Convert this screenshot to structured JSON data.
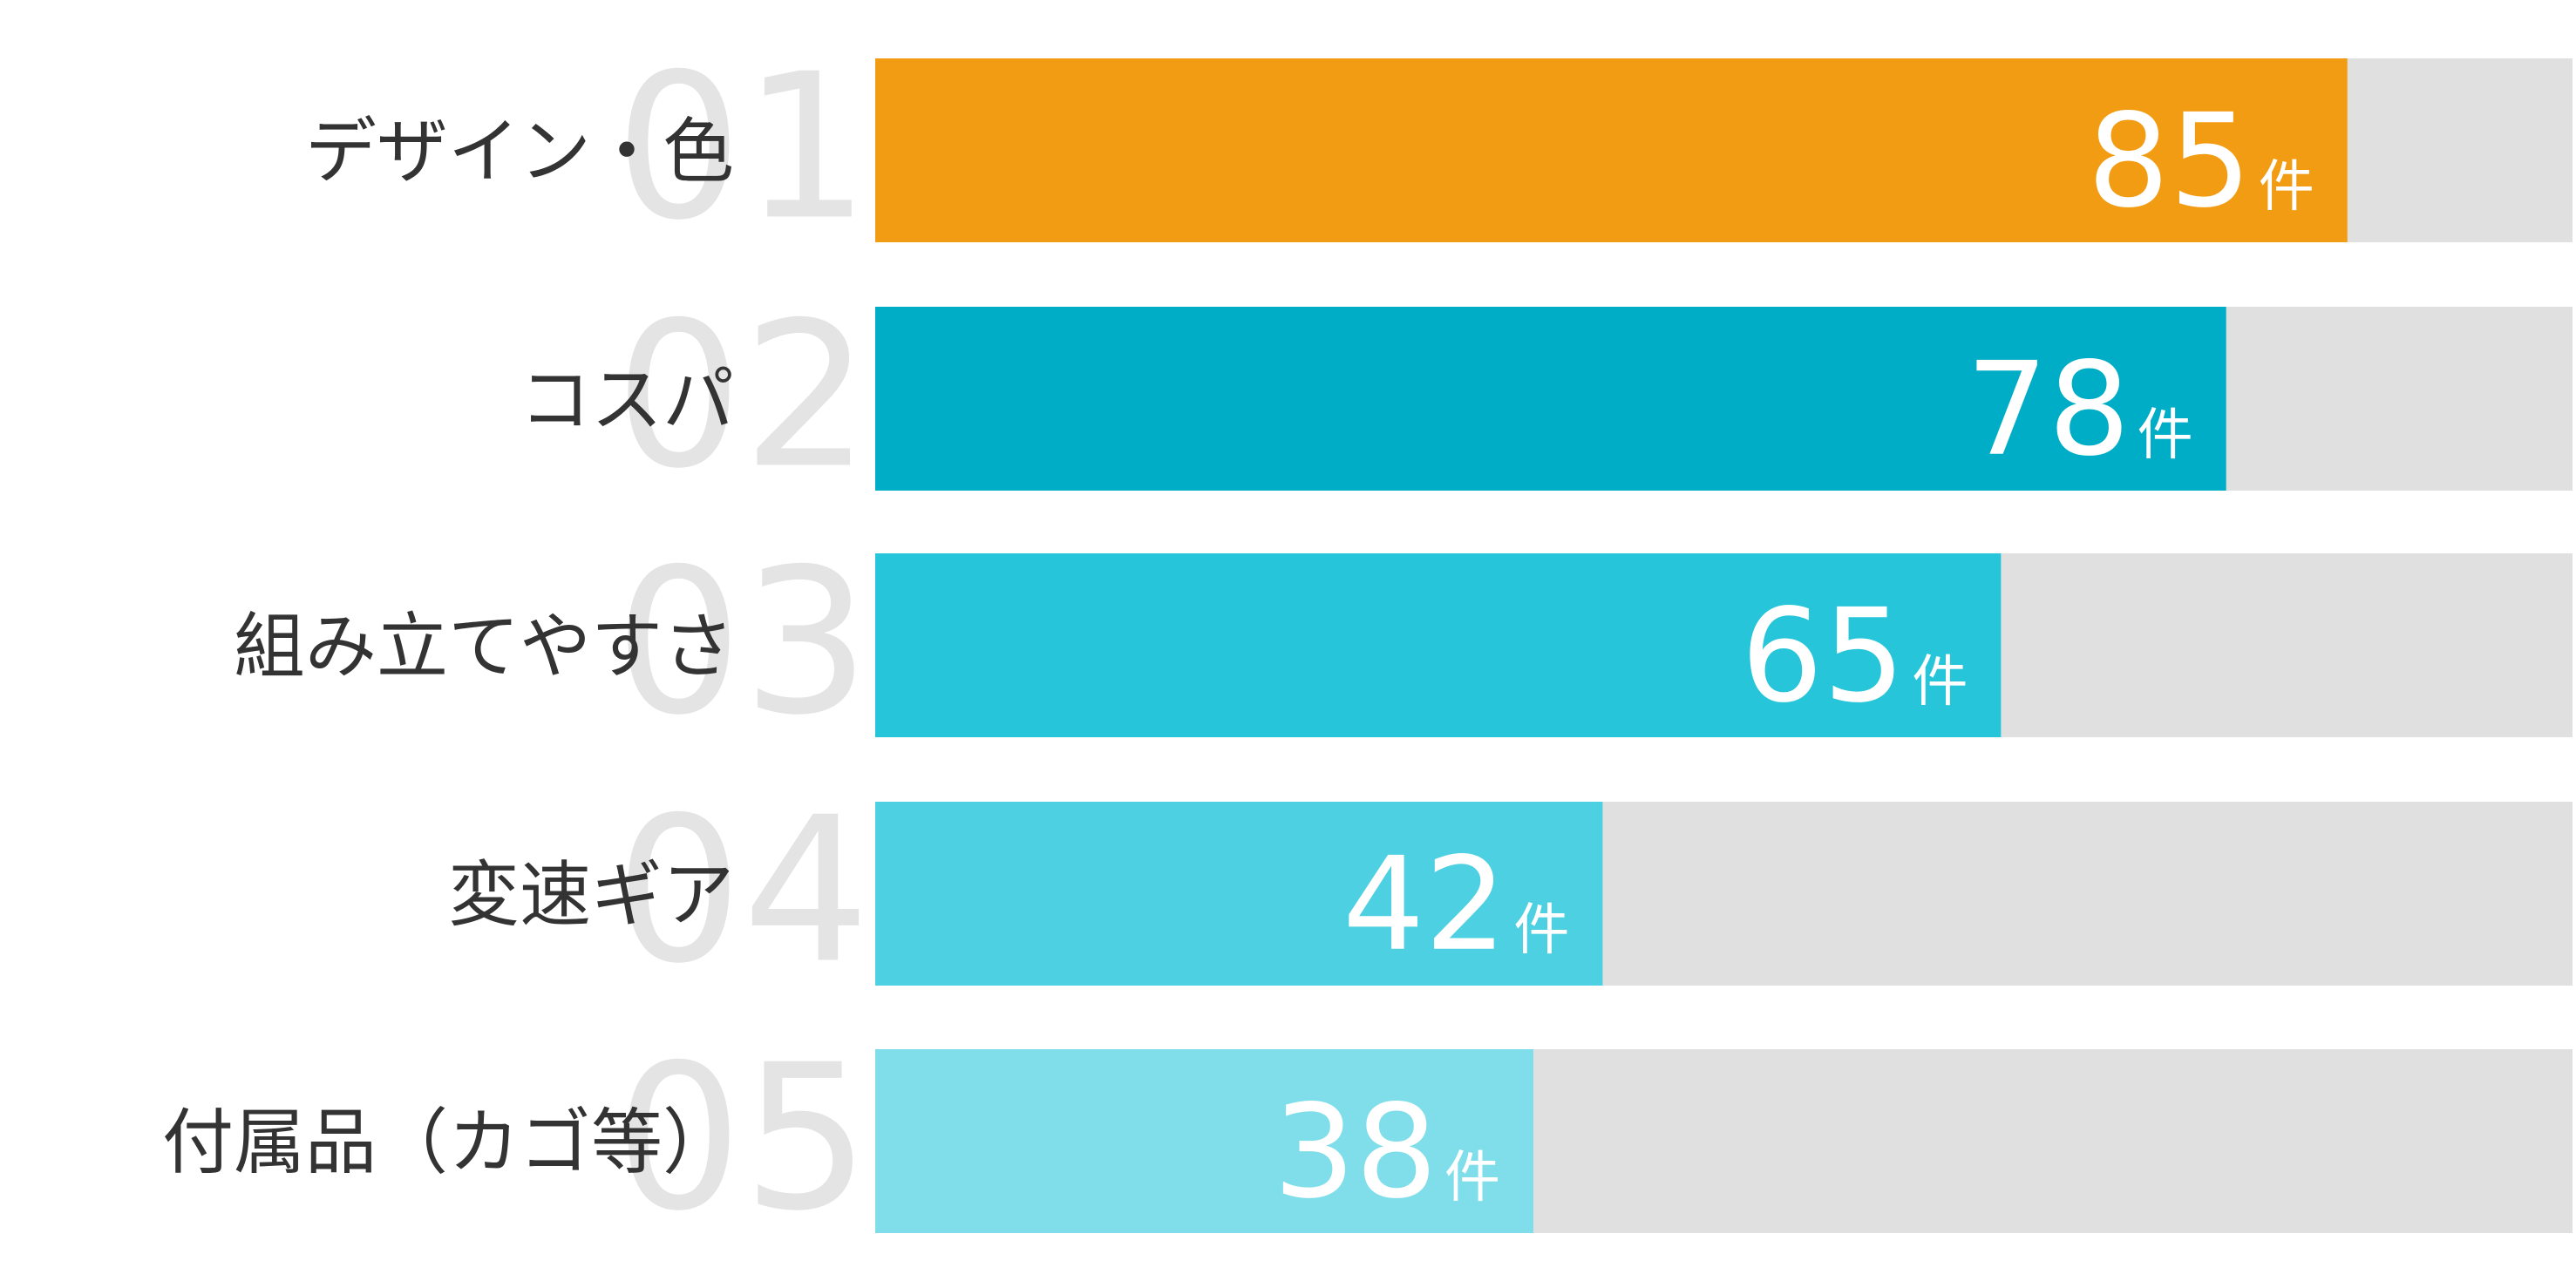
{
  "chart_data": {
    "type": "hbar",
    "categories": [
      "デザイン・色",
      "コスパ",
      "組み立てやすさ",
      "変速ギア",
      "付属品（カゴ等）"
    ],
    "ranks": [
      "01",
      "02",
      "03",
      "04",
      "05"
    ],
    "values": [
      85,
      78,
      65,
      42,
      38
    ],
    "unit": "件",
    "colors": [
      "#f29c14",
      "#00adc6",
      "#26c5da",
      "#4dd0e1",
      "#80deea"
    ],
    "track_color": "#e0e0e0",
    "xlim": [
      0,
      98
    ]
  }
}
